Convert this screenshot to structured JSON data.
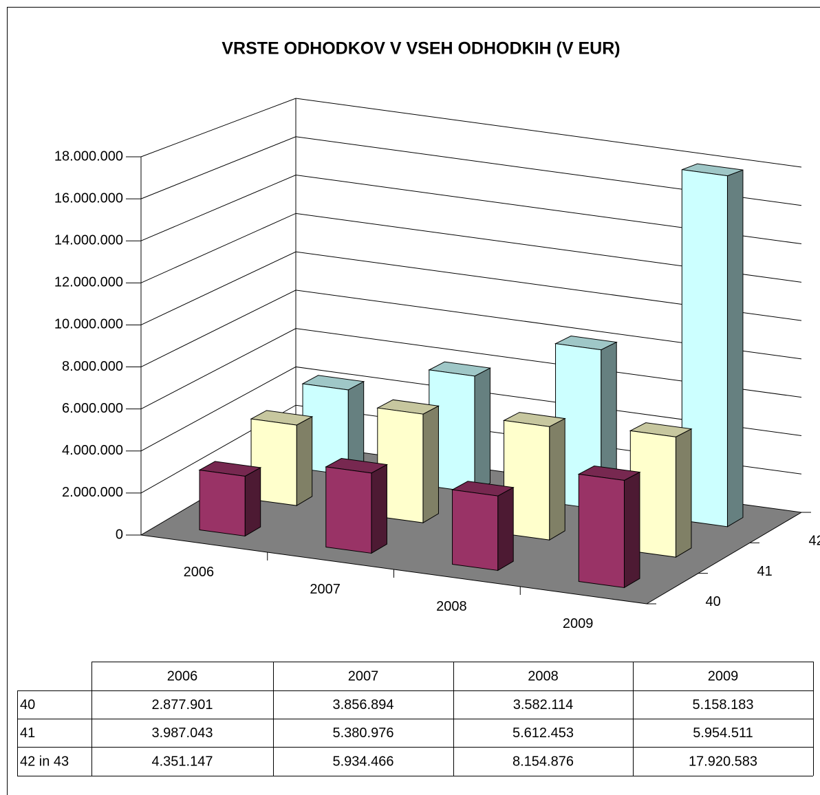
{
  "chart_data": {
    "type": "bar3d",
    "title": "VRSTE ODHODKOV V VSEH ODHODKIH (V EUR)",
    "categories": [
      "2006",
      "2007",
      "2008",
      "2009"
    ],
    "series": [
      {
        "name": "40",
        "color": "#993366",
        "values": [
          2877901,
          3856894,
          3582114,
          5158183
        ],
        "value_labels": [
          "2.877.901",
          "3.856.894",
          "3.582.114",
          "5.158.183"
        ]
      },
      {
        "name": "41",
        "color": "#ffffcc",
        "values": [
          3987043,
          5380976,
          5612453,
          5954511
        ],
        "value_labels": [
          "3.987.043",
          "5.380.976",
          "5.612.453",
          "5.954.511"
        ]
      },
      {
        "name": "42 in 43",
        "color": "#ccffff",
        "values": [
          4351147,
          5934466,
          8154876,
          17920583
        ],
        "value_labels": [
          "4.351.147",
          "5.934.466",
          "8.154.876",
          "17.920.583"
        ]
      }
    ],
    "ylim": [
      0,
      18000000
    ],
    "yticks": [
      0,
      {
        "value": 2000000,
        "label": "2.000.000"
      },
      {
        "value": 4000000,
        "label": "4.000.000"
      },
      {
        "value": 6000000,
        "label": "6.000.000"
      },
      {
        "value": 8000000,
        "label": "8.000.000"
      },
      {
        "value": 10000000,
        "label": "10.000.000"
      },
      {
        "value": 12000000,
        "label": "12.000.000"
      },
      {
        "value": 14000000,
        "label": "14.000.000"
      },
      {
        "value": 16000000,
        "label": "16.000.000"
      },
      {
        "value": 18000000,
        "label": "18.000.000"
      }
    ],
    "grid": true,
    "data_table": true
  }
}
